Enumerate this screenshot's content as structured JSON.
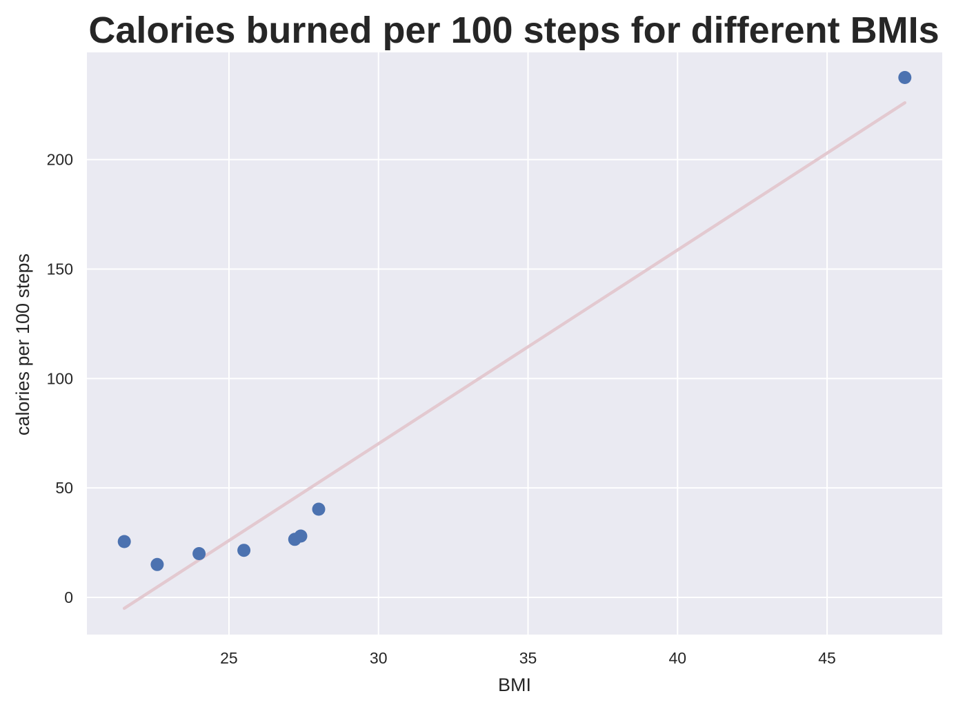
{
  "chart_data": {
    "type": "scatter",
    "title": "Calories burned per 100 steps for different BMIs",
    "xlabel": "BMI",
    "ylabel": "calories per 100 steps",
    "xlim": [
      20.25,
      48.85
    ],
    "ylim": [
      -17,
      249
    ],
    "xticks": [
      25,
      30,
      35,
      40,
      45
    ],
    "yticks": [
      0,
      50,
      100,
      150,
      200
    ],
    "grid": true,
    "background_color": "#EAEAF2",
    "grid_color": "#FFFFFF",
    "series": [
      {
        "type": "scatter",
        "color": "#4C72B0",
        "x": [
          21.5,
          22.6,
          24.0,
          25.5,
          27.2,
          27.4,
          28.0,
          47.6
        ],
        "y": [
          25.5,
          15.0,
          20.0,
          21.5,
          26.5,
          28.0,
          40.3,
          237.5
        ]
      },
      {
        "type": "line",
        "color": "#E3C9D0",
        "x": [
          21.5,
          47.6
        ],
        "y": [
          -5.0,
          226.0
        ]
      }
    ]
  }
}
